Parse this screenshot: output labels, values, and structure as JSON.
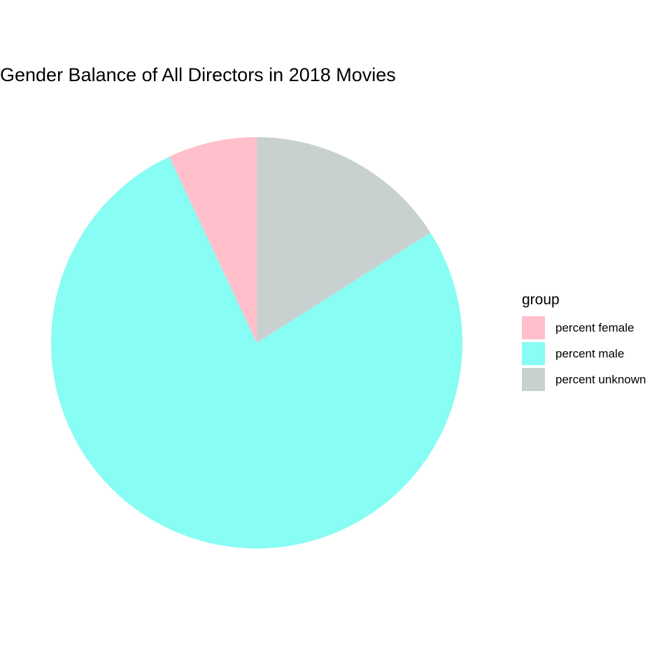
{
  "chart_data": {
    "type": "pie",
    "title": "Gender Balance of All Directors in 2018 Movies",
    "legend": {
      "title": "group",
      "position": "right"
    },
    "categories": [
      "percent female",
      "percent male",
      "percent unknown"
    ],
    "values": [
      7,
      77,
      16
    ],
    "colors": [
      "#FFC0CB",
      "#87FDF3",
      "#C9D0D0"
    ],
    "start_angle": "top",
    "direction": "counterclockwise-from-female"
  }
}
